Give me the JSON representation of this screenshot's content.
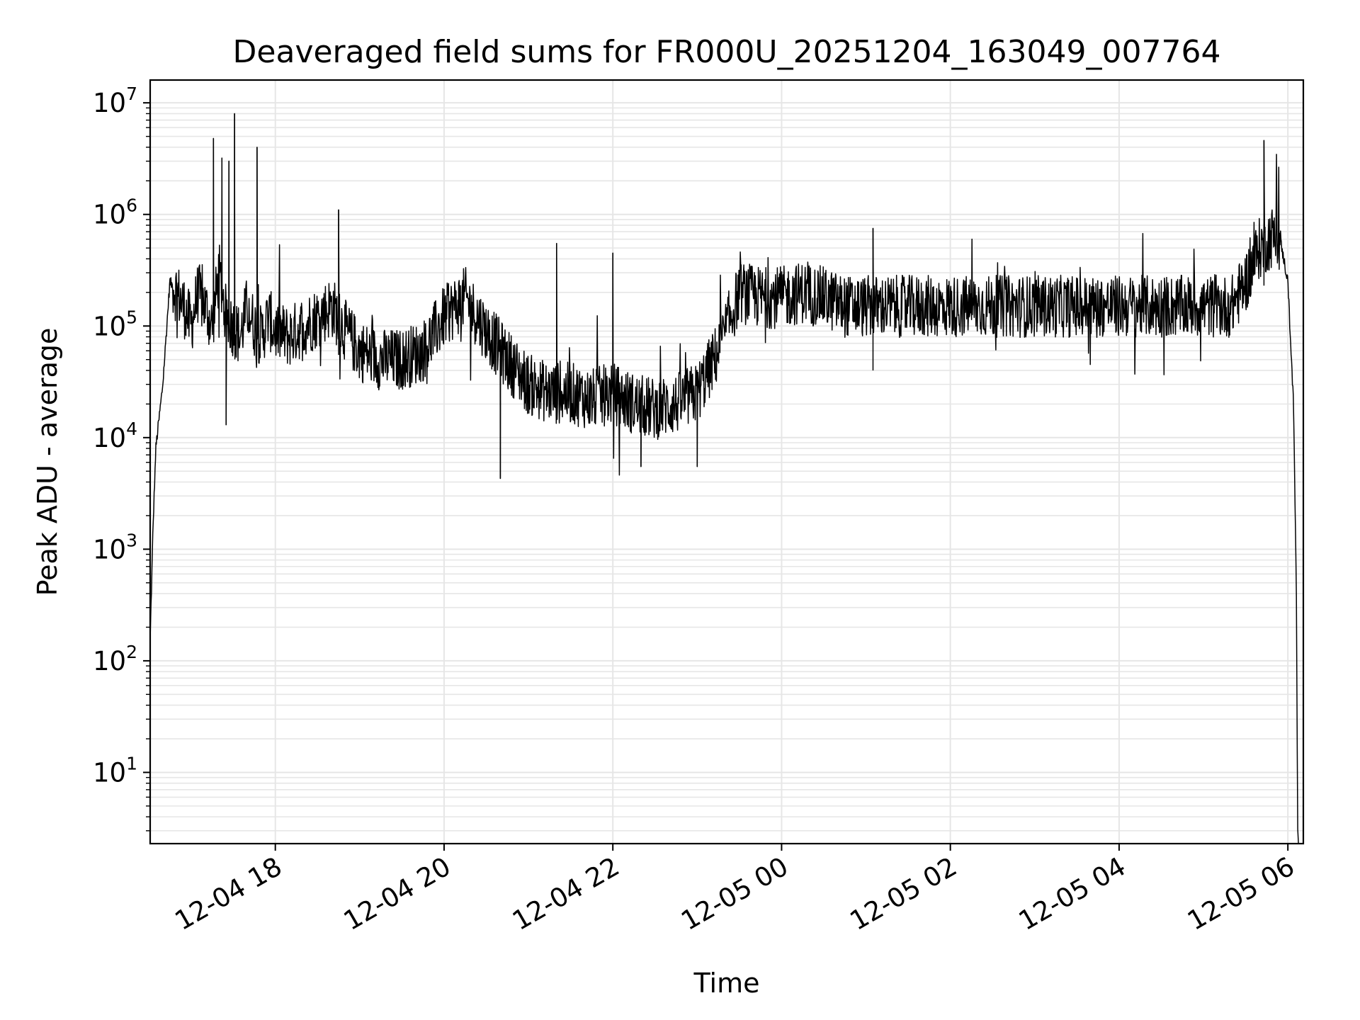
{
  "chart_data": {
    "type": "line",
    "title": "Deaveraged field sums for FR000U_20251204_163049_007764",
    "xlabel": "Time",
    "ylabel": "Peak ADU - average",
    "yscale": "log",
    "ylim": [
      2.3,
      16000000
    ],
    "xlim": [
      "2025-12-04 16:31",
      "2025-12-05 06:11"
    ],
    "grid": true,
    "x_ticks": [
      {
        "value": "2025-12-04 18:00",
        "label": "12-04 18"
      },
      {
        "value": "2025-12-04 20:00",
        "label": "12-04 20"
      },
      {
        "value": "2025-12-04 22:00",
        "label": "12-04 22"
      },
      {
        "value": "2025-12-05 00:00",
        "label": "12-05 00"
      },
      {
        "value": "2025-12-05 02:00",
        "label": "12-05 02"
      },
      {
        "value": "2025-12-05 04:00",
        "label": "12-05 04"
      },
      {
        "value": "2025-12-05 06:00",
        "label": "12-05 06"
      }
    ],
    "y_ticks": [
      {
        "value": 10,
        "base": "10",
        "exp": "1"
      },
      {
        "value": 100,
        "base": "10",
        "exp": "2"
      },
      {
        "value": 1000,
        "base": "10",
        "exp": "3"
      },
      {
        "value": 10000,
        "base": "10",
        "exp": "4"
      },
      {
        "value": 100000,
        "base": "10",
        "exp": "5"
      },
      {
        "value": 1000000,
        "base": "10",
        "exp": "6"
      },
      {
        "value": 10000000,
        "base": "10",
        "exp": "7"
      }
    ],
    "line_color": "#000000",
    "grid_color": "#e6e6e6",
    "series": [
      {
        "x": [
          "2025-12-04 16:31",
          "2025-12-04 16:33",
          "2025-12-04 16:35",
          "2025-12-04 16:40",
          "2025-12-04 16:45",
          "2025-12-04 16:50",
          "2025-12-04 16:55",
          "2025-12-04 17:00",
          "2025-12-04 17:05",
          "2025-12-04 17:10",
          "2025-12-04 17:15",
          "2025-12-04 17:20",
          "2025-12-04 17:25",
          "2025-12-04 17:30",
          "2025-12-04 17:35",
          "2025-12-04 17:40",
          "2025-12-04 17:45",
          "2025-12-04 17:50",
          "2025-12-04 17:55",
          "2025-12-04 18:00",
          "2025-12-04 18:10",
          "2025-12-04 18:20",
          "2025-12-04 18:30",
          "2025-12-04 18:40",
          "2025-12-04 18:50",
          "2025-12-04 19:00",
          "2025-12-04 19:15",
          "2025-12-04 19:30",
          "2025-12-04 19:45",
          "2025-12-04 20:00",
          "2025-12-04 20:15",
          "2025-12-04 20:30",
          "2025-12-04 20:45",
          "2025-12-04 21:00",
          "2025-12-04 21:15",
          "2025-12-04 21:30",
          "2025-12-04 21:45",
          "2025-12-04 22:00",
          "2025-12-04 22:15",
          "2025-12-04 22:30",
          "2025-12-04 22:45",
          "2025-12-04 23:00",
          "2025-12-04 23:15",
          "2025-12-04 23:30",
          "2025-12-04 23:45",
          "2025-12-05 00:00",
          "2025-12-05 00:15",
          "2025-12-05 00:30",
          "2025-12-05 00:45",
          "2025-12-05 01:00",
          "2025-12-05 01:30",
          "2025-12-05 02:00",
          "2025-12-05 02:30",
          "2025-12-05 03:00",
          "2025-12-05 03:30",
          "2025-12-05 04:00",
          "2025-12-05 04:30",
          "2025-12-05 05:00",
          "2025-12-05 05:20",
          "2025-12-05 05:30",
          "2025-12-05 05:40",
          "2025-12-05 05:50",
          "2025-12-05 05:55",
          "2025-12-05 06:00",
          "2025-12-05 06:04",
          "2025-12-05 06:06",
          "2025-12-05 06:07"
        ],
        "values": [
          150,
          1500,
          8000,
          30000,
          250000,
          200000,
          150000,
          100000,
          200000,
          150000,
          100000,
          300000,
          120000,
          100000,
          80000,
          150000,
          100000,
          80000,
          120000,
          90000,
          80000,
          100000,
          120000,
          150000,
          90000,
          60000,
          50000,
          50000,
          60000,
          120000,
          180000,
          90000,
          50000,
          30000,
          25000,
          25000,
          22000,
          25000,
          20000,
          18000,
          20000,
          25000,
          60000,
          200000,
          180000,
          180000,
          200000,
          180000,
          150000,
          150000,
          150000,
          150000,
          150000,
          150000,
          150000,
          150000,
          150000,
          150000,
          150000,
          250000,
          500000,
          650000,
          550000,
          250000,
          20000,
          500,
          3
        ]
      }
    ],
    "spikes": [
      {
        "x": "2025-12-04 17:16",
        "value": 4800000
      },
      {
        "x": "2025-12-04 17:22",
        "value": 3200000
      },
      {
        "x": "2025-12-04 17:27",
        "value": 3000000
      },
      {
        "x": "2025-12-04 17:31",
        "value": 8000000
      },
      {
        "x": "2025-12-04 17:47",
        "value": 4000000
      },
      {
        "x": "2025-12-04 18:45",
        "value": 1100000
      },
      {
        "x": "2025-12-04 21:20",
        "value": 550000
      },
      {
        "x": "2025-12-04 22:00",
        "value": 450000
      },
      {
        "x": "2025-12-05 01:05",
        "value": 750000
      },
      {
        "x": "2025-12-05 05:43",
        "value": 4600000
      }
    ],
    "dips": [
      {
        "x": "2025-12-04 17:25",
        "value": 13000
      },
      {
        "x": "2025-12-04 20:40",
        "value": 4300
      },
      {
        "x": "2025-12-04 22:20",
        "value": 5500
      },
      {
        "x": "2025-12-04 23:00",
        "value": 5500
      }
    ]
  }
}
